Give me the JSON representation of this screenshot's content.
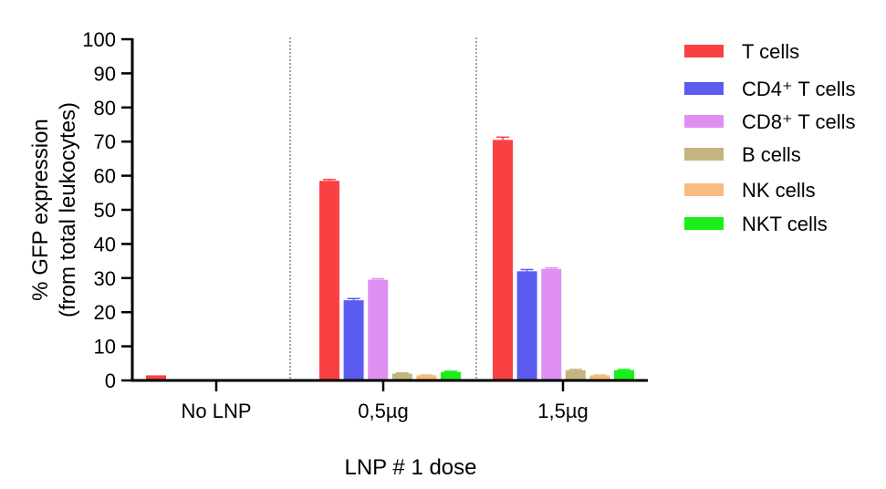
{
  "chart_data": {
    "type": "bar",
    "title": "",
    "xlabel": "LNP # 1 dose",
    "ylabel": "% GFP expression",
    "ylabel_sub": "(from total leukocytes)",
    "ylim": [
      0,
      100
    ],
    "yticks": [
      0,
      10,
      20,
      30,
      40,
      50,
      60,
      70,
      80,
      90,
      100
    ],
    "grid": false,
    "legend_position": "right",
    "group_separators": "dotted",
    "categories": [
      "No LNP",
      "0,5µg",
      "1,5µg"
    ],
    "series": [
      {
        "name": "T cells",
        "color": "#f94144",
        "values": [
          1.5,
          58.5,
          70.5
        ],
        "errors": [
          0,
          0.4,
          0.8
        ]
      },
      {
        "name": "CD4⁺ T cells",
        "color": "#5b5bf0",
        "values": [
          0,
          23.5,
          32
        ],
        "errors": [
          0,
          0.5,
          0.5
        ]
      },
      {
        "name": "CD8⁺ T cells",
        "color": "#df8ff2",
        "values": [
          0,
          29.5,
          32.7
        ],
        "errors": [
          0,
          0.3,
          0.3
        ]
      },
      {
        "name": "B cells",
        "color": "#c2b57f",
        "values": [
          0,
          2,
          3
        ],
        "errors": [
          0,
          0.2,
          0.2
        ]
      },
      {
        "name": "NK cells",
        "color": "#f8bb82",
        "values": [
          0,
          1.5,
          1.5
        ],
        "errors": [
          0,
          0.1,
          0.1
        ]
      },
      {
        "name": "NKT cells",
        "color": "#19ee19",
        "values": [
          0,
          2.5,
          3
        ],
        "errors": [
          0,
          0.2,
          0.2
        ]
      }
    ]
  }
}
